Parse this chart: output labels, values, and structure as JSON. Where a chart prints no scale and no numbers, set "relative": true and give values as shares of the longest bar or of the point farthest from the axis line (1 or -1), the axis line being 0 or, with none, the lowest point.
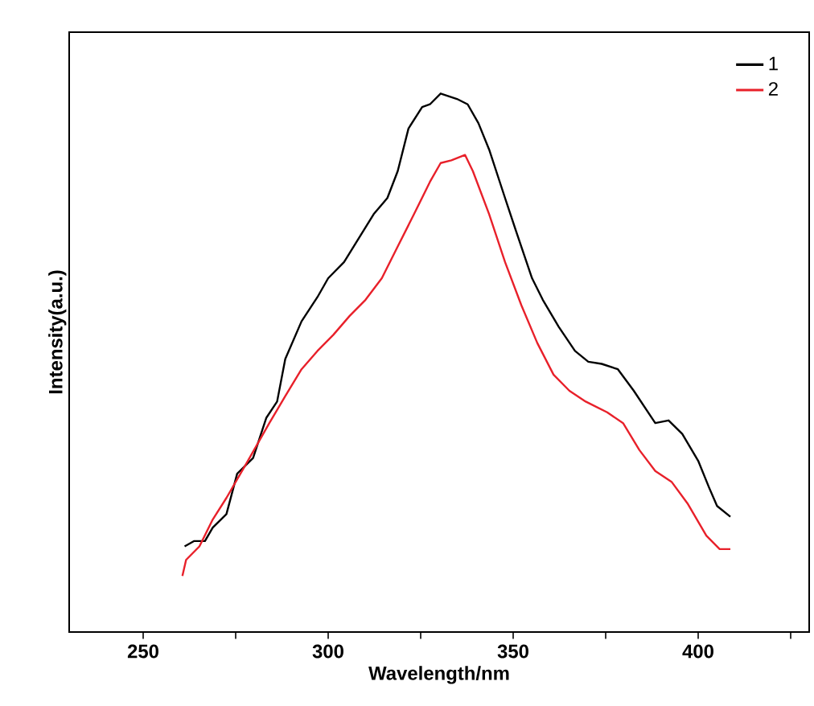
{
  "chart_data": {
    "type": "line",
    "xlabel": "Wavelength/nm",
    "ylabel": "Intensity(a.u.)",
    "relative": true,
    "legend": "top right",
    "marker": "none",
    "line_style": "solid",
    "grid": false,
    "xlim": [
      230,
      430
    ],
    "xticks": [
      250,
      300,
      350,
      400,
      {
        "value": 275,
        "label": null
      },
      {
        "value": 325,
        "label": null
      },
      {
        "value": 375,
        "label": null
      },
      {
        "value": 425,
        "label": null
      }
    ],
    "series": [
      {
        "name": "1",
        "color": "#000000",
        "x": [
          261.2,
          263.8,
          266.7,
          268.8,
          272.5,
          275.4,
          279.7,
          283.3,
          286.2,
          288.4,
          292.8,
          297.1,
          300,
          304.3,
          308.7,
          312.3,
          316,
          318.8,
          321.7,
          325.4,
          327.5,
          330.4,
          334.8,
          337.7,
          340.6,
          343.5,
          347.8,
          350.7,
          355.1,
          358,
          362.3,
          366.7,
          370.3,
          373.9,
          378.3,
          382.6,
          388.4,
          392,
          395.7,
          400,
          402.9,
          405.1,
          408.7
        ],
        "values": [
          0.159,
          0.169,
          0.169,
          0.194,
          0.219,
          0.294,
          0.323,
          0.398,
          0.428,
          0.507,
          0.577,
          0.622,
          0.657,
          0.687,
          0.736,
          0.776,
          0.806,
          0.856,
          0.935,
          0.975,
          0.98,
          1.0,
          0.99,
          0.98,
          0.945,
          0.896,
          0.806,
          0.746,
          0.657,
          0.617,
          0.567,
          0.522,
          0.502,
          0.498,
          0.488,
          0.448,
          0.388,
          0.393,
          0.368,
          0.318,
          0.269,
          0.234,
          0.214
        ]
      },
      {
        "name": "2",
        "color": "#e8202a",
        "x": [
          260.6,
          261.6,
          265.2,
          268.8,
          272.5,
          278.3,
          284.1,
          288.4,
          292.8,
          297.1,
          301.4,
          305.8,
          310.1,
          314.5,
          318.8,
          323.2,
          327.5,
          330.4,
          333.3,
          337,
          339.1,
          343.5,
          347.8,
          352.2,
          356.5,
          360.9,
          365.2,
          369.6,
          375.4,
          379.7,
          384.1,
          388.4,
          392.8,
          397.1,
          402.2,
          405.8,
          408.7
        ],
        "values": [
          0.104,
          0.134,
          0.159,
          0.209,
          0.249,
          0.318,
          0.388,
          0.438,
          0.488,
          0.522,
          0.552,
          0.587,
          0.617,
          0.657,
          0.716,
          0.776,
          0.836,
          0.871,
          0.876,
          0.886,
          0.856,
          0.776,
          0.687,
          0.607,
          0.537,
          0.478,
          0.448,
          0.428,
          0.408,
          0.388,
          0.338,
          0.299,
          0.279,
          0.239,
          0.179,
          0.154,
          0.154
        ]
      }
    ]
  }
}
